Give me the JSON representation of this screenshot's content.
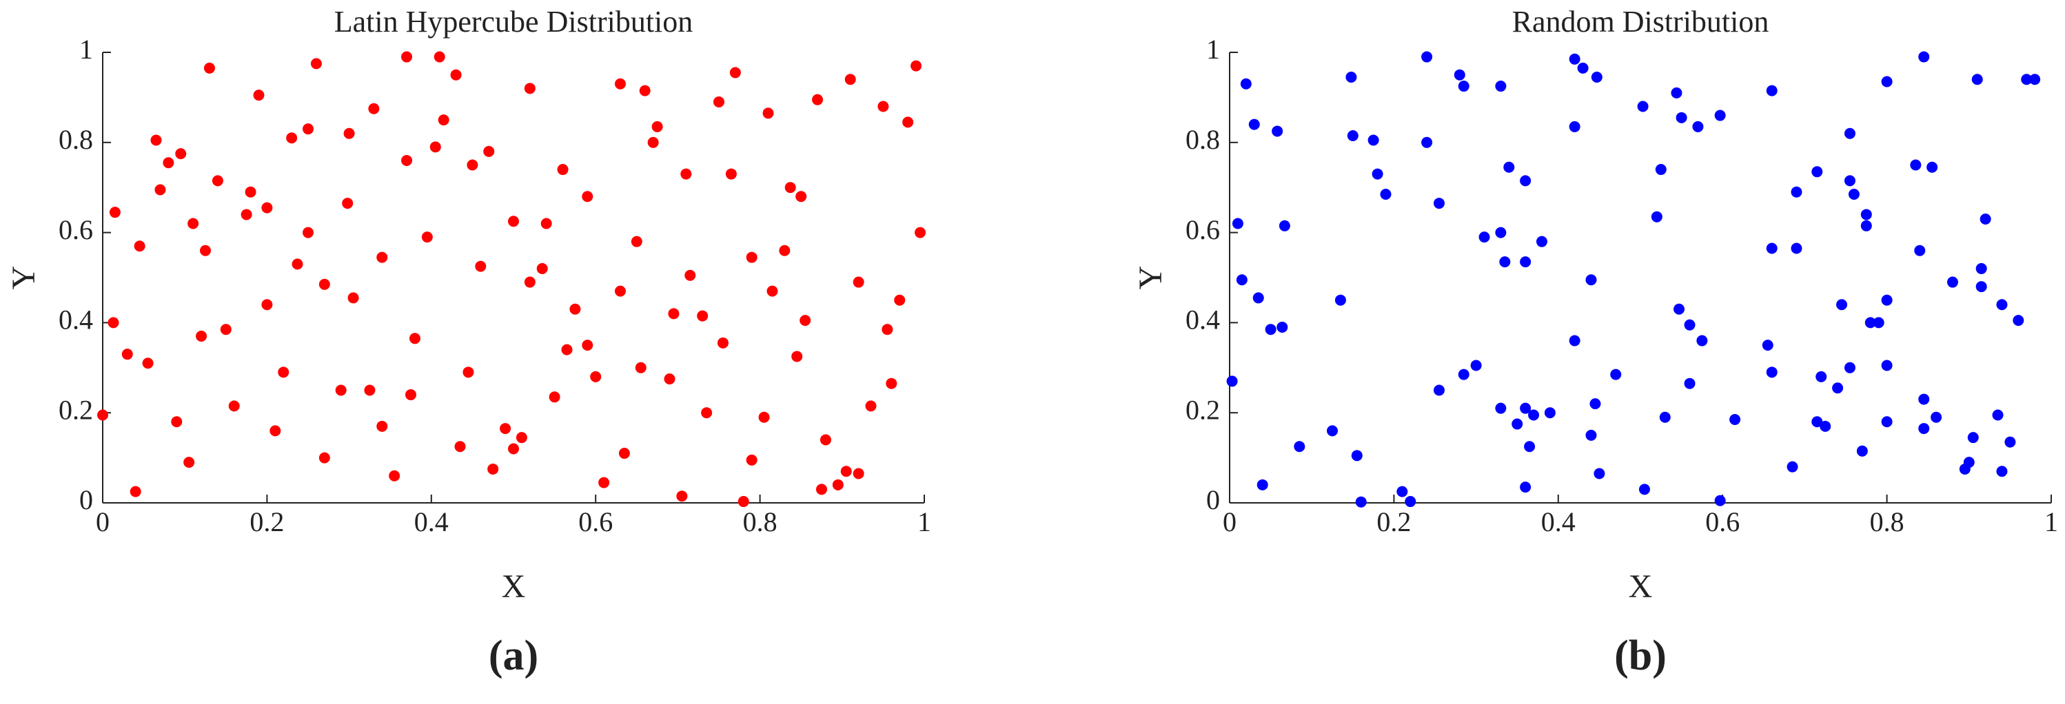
{
  "chart_data": [
    {
      "type": "scatter",
      "title": "Latin Hypercube Distribution",
      "xlabel": "X",
      "ylabel": "Y",
      "caption": "(a)",
      "color": "#ff0000",
      "xlim": [
        0,
        1
      ],
      "ylim": [
        0,
        1
      ],
      "xticks": [
        0,
        0.2,
        0.4,
        0.6,
        0.8,
        1
      ],
      "yticks": [
        0,
        0.2,
        0.4,
        0.6,
        0.8,
        1
      ],
      "x": [
        0.13,
        0.26,
        0.37,
        0.41,
        0.43,
        0.52,
        0.63,
        0.66,
        0.77,
        0.75,
        0.87,
        0.91,
        0.95,
        0.99,
        0.98,
        0.19,
        0.33,
        0.23,
        0.25,
        0.065,
        0.08,
        0.095,
        0.07,
        0.3,
        0.415,
        0.405,
        0.47,
        0.45,
        0.37,
        0.675,
        0.67,
        0.81,
        0.14,
        0.18,
        0.175,
        0.2,
        0.11,
        0.125,
        0.015,
        0.045,
        0.25,
        0.298,
        0.237,
        0.71,
        0.765,
        0.56,
        0.59,
        0.5,
        0.54,
        0.395,
        0.46,
        0.34,
        0.27,
        0.305,
        0.2,
        0.535,
        0.52,
        0.65,
        0.59,
        0.63,
        0.575,
        0.565,
        0.38,
        0.15,
        0.12,
        0.013,
        0.03,
        0.055,
        0.22,
        0.837,
        0.85,
        0.83,
        0.79,
        0.815,
        0.715,
        0.92,
        0.995,
        0.97,
        0.955,
        0.855,
        0.73,
        0.695,
        0.755,
        0.845,
        0.655,
        0.69,
        0.6,
        0.445,
        0.55,
        0.96,
        0.935,
        0.29,
        0.325,
        0.375,
        0.16,
        0.09,
        0.21,
        0.34,
        0.49,
        0.51,
        0.5,
        0.435,
        0.475,
        0.355,
        0.27,
        0.105,
        0.635,
        0.735,
        0.805,
        0.88,
        0.79,
        0.905,
        0.92,
        0.895,
        0.875,
        0.61,
        0.705,
        0.78,
        0.0,
        0.04
      ],
      "values": [
        0.965,
        0.975,
        0.99,
        0.99,
        0.95,
        0.92,
        0.93,
        0.915,
        0.955,
        0.89,
        0.895,
        0.94,
        0.88,
        0.97,
        0.845,
        0.905,
        0.875,
        0.81,
        0.83,
        0.805,
        0.755,
        0.775,
        0.695,
        0.82,
        0.85,
        0.79,
        0.78,
        0.75,
        0.76,
        0.835,
        0.8,
        0.865,
        0.715,
        0.69,
        0.64,
        0.655,
        0.62,
        0.56,
        0.645,
        0.57,
        0.6,
        0.665,
        0.53,
        0.73,
        0.73,
        0.74,
        0.68,
        0.625,
        0.62,
        0.59,
        0.525,
        0.545,
        0.485,
        0.455,
        0.44,
        0.52,
        0.49,
        0.58,
        0.35,
        0.47,
        0.43,
        0.34,
        0.365,
        0.385,
        0.37,
        0.4,
        0.33,
        0.31,
        0.29,
        0.7,
        0.68,
        0.56,
        0.545,
        0.47,
        0.505,
        0.49,
        0.6,
        0.45,
        0.385,
        0.405,
        0.415,
        0.42,
        0.355,
        0.325,
        0.3,
        0.275,
        0.28,
        0.29,
        0.235,
        0.265,
        0.215,
        0.25,
        0.25,
        0.24,
        0.215,
        0.18,
        0.16,
        0.17,
        0.165,
        0.145,
        0.12,
        0.125,
        0.075,
        0.06,
        0.1,
        0.09,
        0.11,
        0.2,
        0.19,
        0.14,
        0.095,
        0.07,
        0.065,
        0.04,
        0.03,
        0.045,
        0.015,
        0.003,
        0.195,
        0.025
      ]
    },
    {
      "type": "scatter",
      "title": "Random Distribution",
      "xlabel": "X",
      "ylabel": "Y",
      "caption": "(b)",
      "color": "#0000ff",
      "xlim": [
        0,
        1
      ],
      "ylim": [
        0,
        1
      ],
      "xticks": [
        0,
        0.2,
        0.4,
        0.6,
        0.8,
        1
      ],
      "yticks": [
        0,
        0.2,
        0.4,
        0.6,
        0.8,
        1
      ],
      "x": [
        0.02,
        0.03,
        0.058,
        0.148,
        0.24,
        0.28,
        0.15,
        0.175,
        0.18,
        0.19,
        0.24,
        0.285,
        0.33,
        0.34,
        0.36,
        0.42,
        0.43,
        0.447,
        0.42,
        0.503,
        0.544,
        0.55,
        0.57,
        0.597,
        0.525,
        0.52,
        0.66,
        0.845,
        0.8,
        0.91,
        0.97,
        0.98,
        0.755,
        0.715,
        0.755,
        0.76,
        0.69,
        0.835,
        0.855,
        0.775,
        0.775,
        0.69,
        0.66,
        0.84,
        0.88,
        0.915,
        0.915,
        0.92,
        0.79,
        0.8,
        0.78,
        0.745,
        0.655,
        0.66,
        0.72,
        0.74,
        0.755,
        0.8,
        0.845,
        0.86,
        0.845,
        0.715,
        0.725,
        0.8,
        0.77,
        0.685,
        0.905,
        0.9,
        0.895,
        0.94,
        0.935,
        0.95,
        0.94,
        0.96,
        0.01,
        0.015,
        0.067,
        0.035,
        0.05,
        0.064,
        0.135,
        0.003,
        0.255,
        0.31,
        0.33,
        0.335,
        0.36,
        0.38,
        0.44,
        0.547,
        0.56,
        0.575,
        0.56,
        0.42,
        0.255,
        0.285,
        0.3,
        0.33,
        0.35,
        0.36,
        0.37,
        0.39,
        0.365,
        0.36,
        0.445,
        0.44,
        0.45,
        0.47,
        0.53,
        0.505,
        0.615,
        0.597,
        0.125,
        0.085,
        0.155,
        0.04,
        0.16,
        0.21,
        0.22
      ],
      "values": [
        0.93,
        0.84,
        0.825,
        0.945,
        0.99,
        0.95,
        0.815,
        0.805,
        0.73,
        0.685,
        0.8,
        0.925,
        0.925,
        0.745,
        0.715,
        0.985,
        0.965,
        0.945,
        0.835,
        0.88,
        0.91,
        0.855,
        0.835,
        0.86,
        0.74,
        0.635,
        0.915,
        0.99,
        0.935,
        0.94,
        0.94,
        0.94,
        0.82,
        0.735,
        0.715,
        0.685,
        0.69,
        0.75,
        0.745,
        0.64,
        0.615,
        0.565,
        0.565,
        0.56,
        0.49,
        0.52,
        0.48,
        0.63,
        0.4,
        0.45,
        0.4,
        0.44,
        0.35,
        0.29,
        0.28,
        0.255,
        0.3,
        0.305,
        0.23,
        0.19,
        0.165,
        0.18,
        0.17,
        0.18,
        0.115,
        0.08,
        0.145,
        0.09,
        0.075,
        0.07,
        0.195,
        0.135,
        0.44,
        0.405,
        0.62,
        0.495,
        0.615,
        0.455,
        0.385,
        0.39,
        0.45,
        0.27,
        0.665,
        0.59,
        0.6,
        0.535,
        0.535,
        0.58,
        0.495,
        0.43,
        0.395,
        0.36,
        0.265,
        0.36,
        0.25,
        0.285,
        0.305,
        0.21,
        0.175,
        0.21,
        0.195,
        0.2,
        0.125,
        0.035,
        0.22,
        0.15,
        0.065,
        0.285,
        0.19,
        0.03,
        0.185,
        0.005,
        0.16,
        0.125,
        0.105,
        0.04,
        0.002,
        0.025,
        0.003
      ]
    }
  ]
}
